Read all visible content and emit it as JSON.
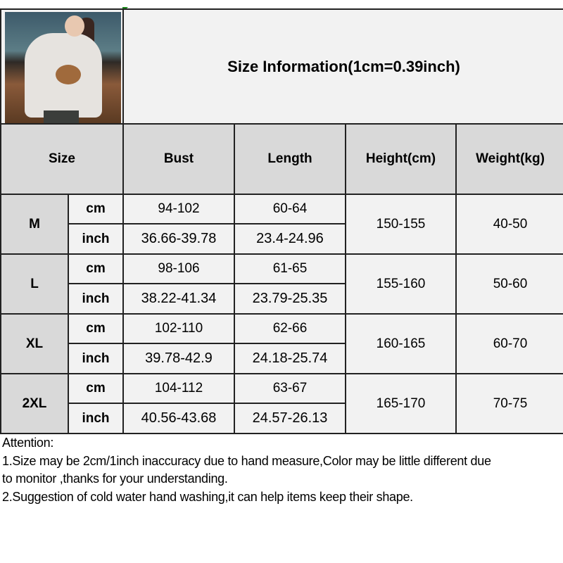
{
  "title": "Size Information(1cm=0.39inch)",
  "headers": {
    "size": "Size",
    "bust": "Bust",
    "length": "Length",
    "height": "Height(cm)",
    "weight": "Weight(kg)"
  },
  "rows": [
    {
      "size": "M",
      "cm_label": "cm",
      "inch_label": "inch",
      "bust_cm": "94-102",
      "bust_inch": "36.66-39.78",
      "length_cm": "60-64",
      "length_inch": "23.4-24.96",
      "height": "150-155",
      "weight": "40-50"
    },
    {
      "size": "L",
      "cm_label": "cm",
      "inch_label": "inch",
      "bust_cm": "98-106",
      "bust_inch": "38.22-41.34",
      "length_cm": "61-65",
      "length_inch": "23.79-25.35",
      "height": "155-160",
      "weight": "50-60"
    },
    {
      "size": "XL",
      "cm_label": "cm",
      "inch_label": "inch",
      "bust_cm": "102-110",
      "bust_inch": "39.78-42.9",
      "length_cm": "62-66",
      "length_inch": "24.18-25.74",
      "height": "160-165",
      "weight": "60-70"
    },
    {
      "size": "2XL",
      "cm_label": "cm",
      "inch_label": "inch",
      "bust_cm": "104-112",
      "bust_inch": "40.56-43.68",
      "length_cm": "63-67",
      "length_inch": "24.57-26.13",
      "height": "165-170",
      "weight": "70-75"
    }
  ],
  "notes": {
    "heading": "Attention:",
    "line1a": "1.Size may be 2cm/1inch inaccuracy due to hand measure,Color may be little different due",
    "line1b": "to monitor ,thanks for your understanding.",
    "line2": "2.Suggestion of cold water hand washing,it can help items keep their shape."
  },
  "photo_icon": "product-photo-sweatshirt"
}
